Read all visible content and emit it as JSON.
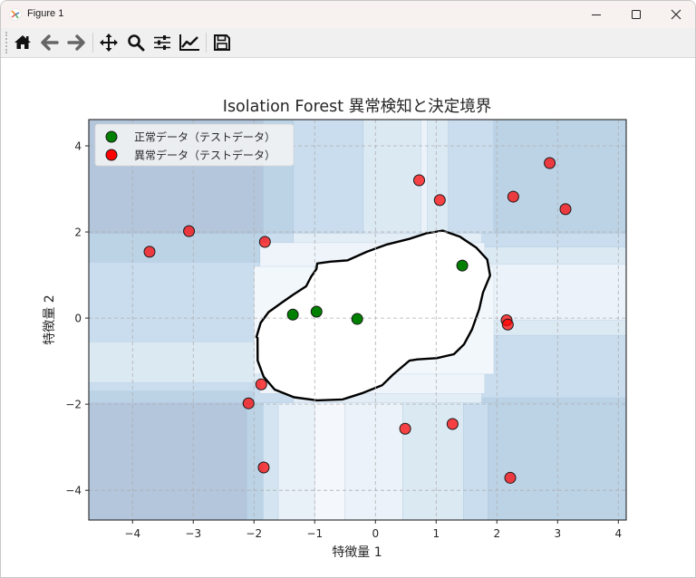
{
  "window": {
    "title": "Figure 1",
    "controls": {
      "minimize": "minimize",
      "maximize": "maximize",
      "close": "close"
    }
  },
  "toolbar": {
    "buttons": [
      {
        "name": "home",
        "icon": "home-icon",
        "label": "Home"
      },
      {
        "name": "back",
        "icon": "arrow-left-icon",
        "label": "Back"
      },
      {
        "name": "forward",
        "icon": "arrow-right-icon",
        "label": "Forward"
      },
      {
        "name": "pan",
        "icon": "move-icon",
        "label": "Pan"
      },
      {
        "name": "zoom",
        "icon": "magnifier-icon",
        "label": "Zoom"
      },
      {
        "name": "subplots",
        "icon": "sliders-icon",
        "label": "Configure subplots"
      },
      {
        "name": "axes",
        "icon": "line-chart-icon",
        "label": "Edit axis"
      },
      {
        "name": "save",
        "icon": "floppy-disk-icon",
        "label": "Save"
      }
    ]
  },
  "colors": {
    "normal_point": "#008000",
    "anomaly_point": "#ff0000",
    "boundary": "#000000",
    "grid": "#b0b0b0",
    "text": "#262626"
  },
  "chart_data": {
    "type": "scatter",
    "title": "Isolation Forest 異常検知と決定境界",
    "xlabel": "特徴量 1",
    "ylabel": "特徴量 2",
    "xlim": [
      -4.72,
      4.13
    ],
    "ylim": [
      -4.69,
      4.61
    ],
    "xticks": [
      -4,
      -3,
      -2,
      -1,
      0,
      1,
      2,
      3,
      4
    ],
    "yticks": [
      -4,
      -2,
      0,
      2,
      4
    ],
    "xtick_labels": [
      "−4",
      "−3",
      "−2",
      "−1",
      "0",
      "1",
      "2",
      "3",
      "4"
    ],
    "ytick_labels": [
      "−4",
      "−2",
      "0",
      "2",
      "4"
    ],
    "grid": true,
    "legend_position": "upper left",
    "legend": [
      {
        "label": "正常データ（テストデータ）",
        "color": "#008000"
      },
      {
        "label": "異常データ（テストデータ）",
        "color": "#ff0000"
      }
    ],
    "series": [
      {
        "name": "正常データ（テストデータ）",
        "color": "#008000",
        "points": [
          [
            -1.36,
            0.08
          ],
          [
            -0.97,
            0.15
          ],
          [
            -0.3,
            -0.02
          ],
          [
            1.43,
            1.22
          ]
        ]
      },
      {
        "name": "異常データ（テストデータ）",
        "color": "#ff0000",
        "points": [
          [
            -3.72,
            1.54
          ],
          [
            -3.07,
            2.02
          ],
          [
            -1.82,
            1.77
          ],
          [
            0.72,
            3.2
          ],
          [
            1.06,
            2.74
          ],
          [
            2.27,
            2.82
          ],
          [
            2.87,
            3.6
          ],
          [
            3.13,
            2.53
          ],
          [
            2.16,
            -0.05
          ],
          [
            2.18,
            -0.15
          ],
          [
            -1.88,
            -1.54
          ],
          [
            -2.09,
            -1.98
          ],
          [
            -1.84,
            -3.47
          ],
          [
            0.49,
            -2.57
          ],
          [
            1.27,
            -2.46
          ],
          [
            2.22,
            -3.71
          ]
        ]
      }
    ],
    "decision_boundary": {
      "label": "decision function = 0",
      "contour": [
        [
          -1.95,
          -0.45
        ],
        [
          -1.9,
          -0.1
        ],
        [
          -1.75,
          0.15
        ],
        [
          -1.55,
          0.35
        ],
        [
          -1.35,
          0.55
        ],
        [
          -1.15,
          0.75
        ],
        [
          -1.05,
          0.95
        ],
        [
          -0.98,
          1.15
        ],
        [
          -0.95,
          1.28
        ],
        [
          -0.75,
          1.3
        ],
        [
          -0.45,
          1.35
        ],
        [
          -0.15,
          1.55
        ],
        [
          0.2,
          1.7
        ],
        [
          0.55,
          1.85
        ],
        [
          0.85,
          1.98
        ],
        [
          1.1,
          2.02
        ],
        [
          1.4,
          1.9
        ],
        [
          1.65,
          1.65
        ],
        [
          1.85,
          1.35
        ],
        [
          1.88,
          1.0
        ],
        [
          1.78,
          0.6
        ],
        [
          1.7,
          0.2
        ],
        [
          1.6,
          -0.25
        ],
        [
          1.45,
          -0.6
        ],
        [
          1.3,
          -0.85
        ],
        [
          1.0,
          -0.92
        ],
        [
          0.7,
          -0.95
        ],
        [
          0.55,
          -1.0
        ],
        [
          0.3,
          -1.3
        ],
        [
          0.1,
          -1.55
        ],
        [
          -0.2,
          -1.75
        ],
        [
          -0.55,
          -1.88
        ],
        [
          -0.95,
          -1.9
        ],
        [
          -1.35,
          -1.85
        ],
        [
          -1.65,
          -1.65
        ],
        [
          -1.85,
          -1.35
        ],
        [
          -1.93,
          -1.0
        ],
        [
          -1.95,
          -0.45
        ]
      ]
    },
    "background_regions": [
      {
        "x0": -4.72,
        "x1": -2.12,
        "y0": -4.69,
        "y1": -1.97,
        "fill": "#b3c6dc"
      },
      {
        "x0": -4.72,
        "x1": -1.85,
        "y0": 1.97,
        "y1": 4.61,
        "fill": "#b3c6dc"
      },
      {
        "x0": -2.12,
        "x1": -1.85,
        "y0": -4.69,
        "y1": -1.97,
        "fill": "#bcd3e6"
      },
      {
        "x0": -1.85,
        "x1": -1.6,
        "y0": -4.69,
        "y1": -1.97,
        "fill": "#d4e5f1"
      },
      {
        "x0": -1.6,
        "x1": -0.55,
        "y0": -4.69,
        "y1": -1.97,
        "fill": "#e8f0f8"
      },
      {
        "x0": -1.0,
        "x1": -0.5,
        "y0": -4.69,
        "y1": -1.97,
        "fill": "#f4f8fc"
      },
      {
        "x0": -0.5,
        "x1": 0.45,
        "y0": -4.69,
        "y1": -1.97,
        "fill": "#ebf2f9"
      },
      {
        "x0": 0.45,
        "x1": 1.45,
        "y0": -4.69,
        "y1": -1.97,
        "fill": "#dbe9f3"
      },
      {
        "x0": 1.45,
        "x1": 1.85,
        "y0": -4.69,
        "y1": -1.97,
        "fill": "#c9ddee"
      },
      {
        "x0": 1.85,
        "x1": 4.13,
        "y0": -4.69,
        "y1": -1.97,
        "fill": "#bcd3e6"
      },
      {
        "x0": -1.85,
        "x1": -1.35,
        "y0": 1.97,
        "y1": 4.61,
        "fill": "#bcd3e6"
      },
      {
        "x0": -1.35,
        "x1": -0.2,
        "y0": 1.97,
        "y1": 4.61,
        "fill": "#c9ddee"
      },
      {
        "x0": -0.2,
        "x1": 1.2,
        "y0": 1.97,
        "y1": 4.61,
        "fill": "#dbe9f3"
      },
      {
        "x0": 0.75,
        "x1": 0.85,
        "y0": 1.97,
        "y1": 4.61,
        "fill": "#ebf2f9"
      },
      {
        "x0": 1.2,
        "x1": 1.95,
        "y0": 1.97,
        "y1": 4.61,
        "fill": "#c9ddee"
      },
      {
        "x0": 1.95,
        "x1": 4.13,
        "y0": 1.97,
        "y1": 4.61,
        "fill": "#bcd3e6"
      },
      {
        "x0": -4.72,
        "x1": -1.35,
        "y0": -1.97,
        "y1": 1.97,
        "fill": "#c9ddee"
      },
      {
        "x0": -4.72,
        "x1": -1.8,
        "y0": 1.3,
        "y1": 1.97,
        "fill": "#bcd3e6"
      },
      {
        "x0": -4.72,
        "x1": -1.9,
        "y0": -1.5,
        "y1": -0.55,
        "fill": "#dbe9f3"
      },
      {
        "x0": -4.72,
        "x1": -2.0,
        "y0": -1.97,
        "y1": -1.7,
        "fill": "#bcd3e6"
      },
      {
        "x0": 1.6,
        "x1": 4.13,
        "y0": -1.97,
        "y1": 1.97,
        "fill": "#c9ddee"
      },
      {
        "x0": 1.6,
        "x1": 4.13,
        "y0": -0.4,
        "y1": 1.65,
        "fill": "#dbe9f3"
      },
      {
        "x0": 1.75,
        "x1": 4.13,
        "y0": -0.05,
        "y1": 1.25,
        "fill": "#ebf2f9"
      },
      {
        "x0": 1.75,
        "x1": 4.13,
        "y0": -1.97,
        "y1": -1.85,
        "fill": "#bcd3e6"
      },
      {
        "x0": -1.35,
        "x1": 1.75,
        "y0": -1.97,
        "y1": 1.97,
        "fill": "#e3edf6"
      },
      {
        "x0": -1.9,
        "x1": 1.8,
        "y0": -1.75,
        "y1": 1.75,
        "fill": "#eef4fa"
      },
      {
        "x0": -2.0,
        "x1": 1.95,
        "y0": -1.3,
        "y1": 1.2,
        "fill": "#f2f7fb"
      }
    ]
  }
}
